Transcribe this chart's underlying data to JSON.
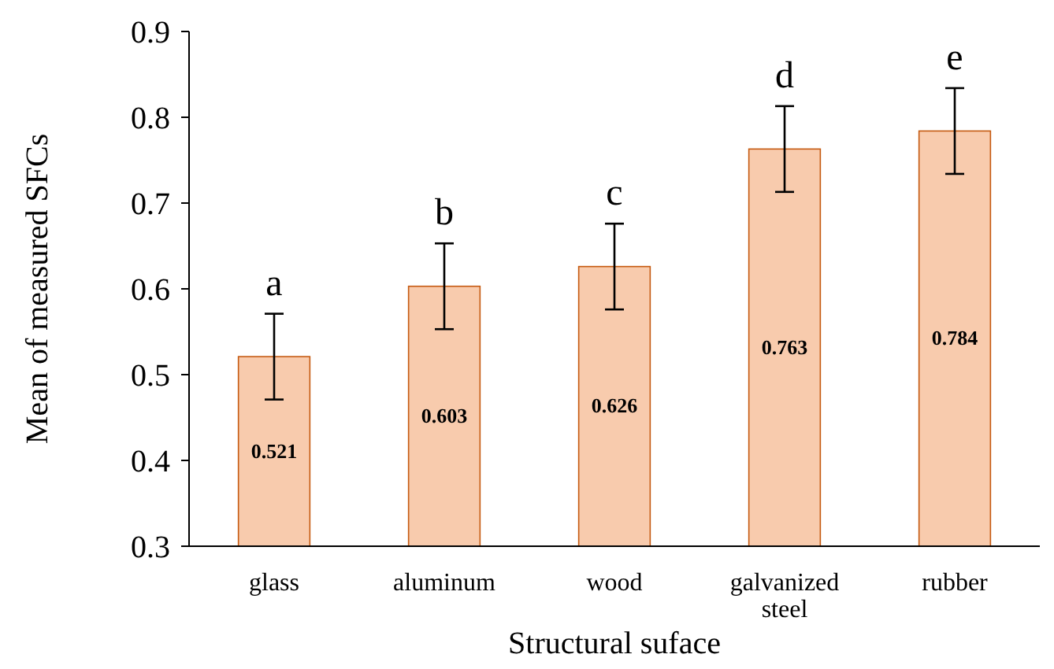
{
  "chart_data": {
    "type": "bar",
    "xlabel": "Structural suface",
    "ylabel": "Mean of measured SFCs",
    "categories": [
      "glass",
      "aluminum",
      "wood",
      "galvanized steel",
      "rubber"
    ],
    "values": [
      0.521,
      0.603,
      0.626,
      0.763,
      0.784
    ],
    "errors": [
      0.05,
      0.05,
      0.05,
      0.05,
      0.05
    ],
    "color": "#f8cbad",
    "ylim": [
      0.3,
      0.9
    ],
    "yticks": [
      0.3,
      0.4,
      0.5,
      0.6,
      0.7,
      0.8,
      0.9
    ],
    "data_labels": true,
    "grid": false,
    "annotations": [
      "a",
      "b",
      "c",
      "d",
      "e"
    ]
  }
}
